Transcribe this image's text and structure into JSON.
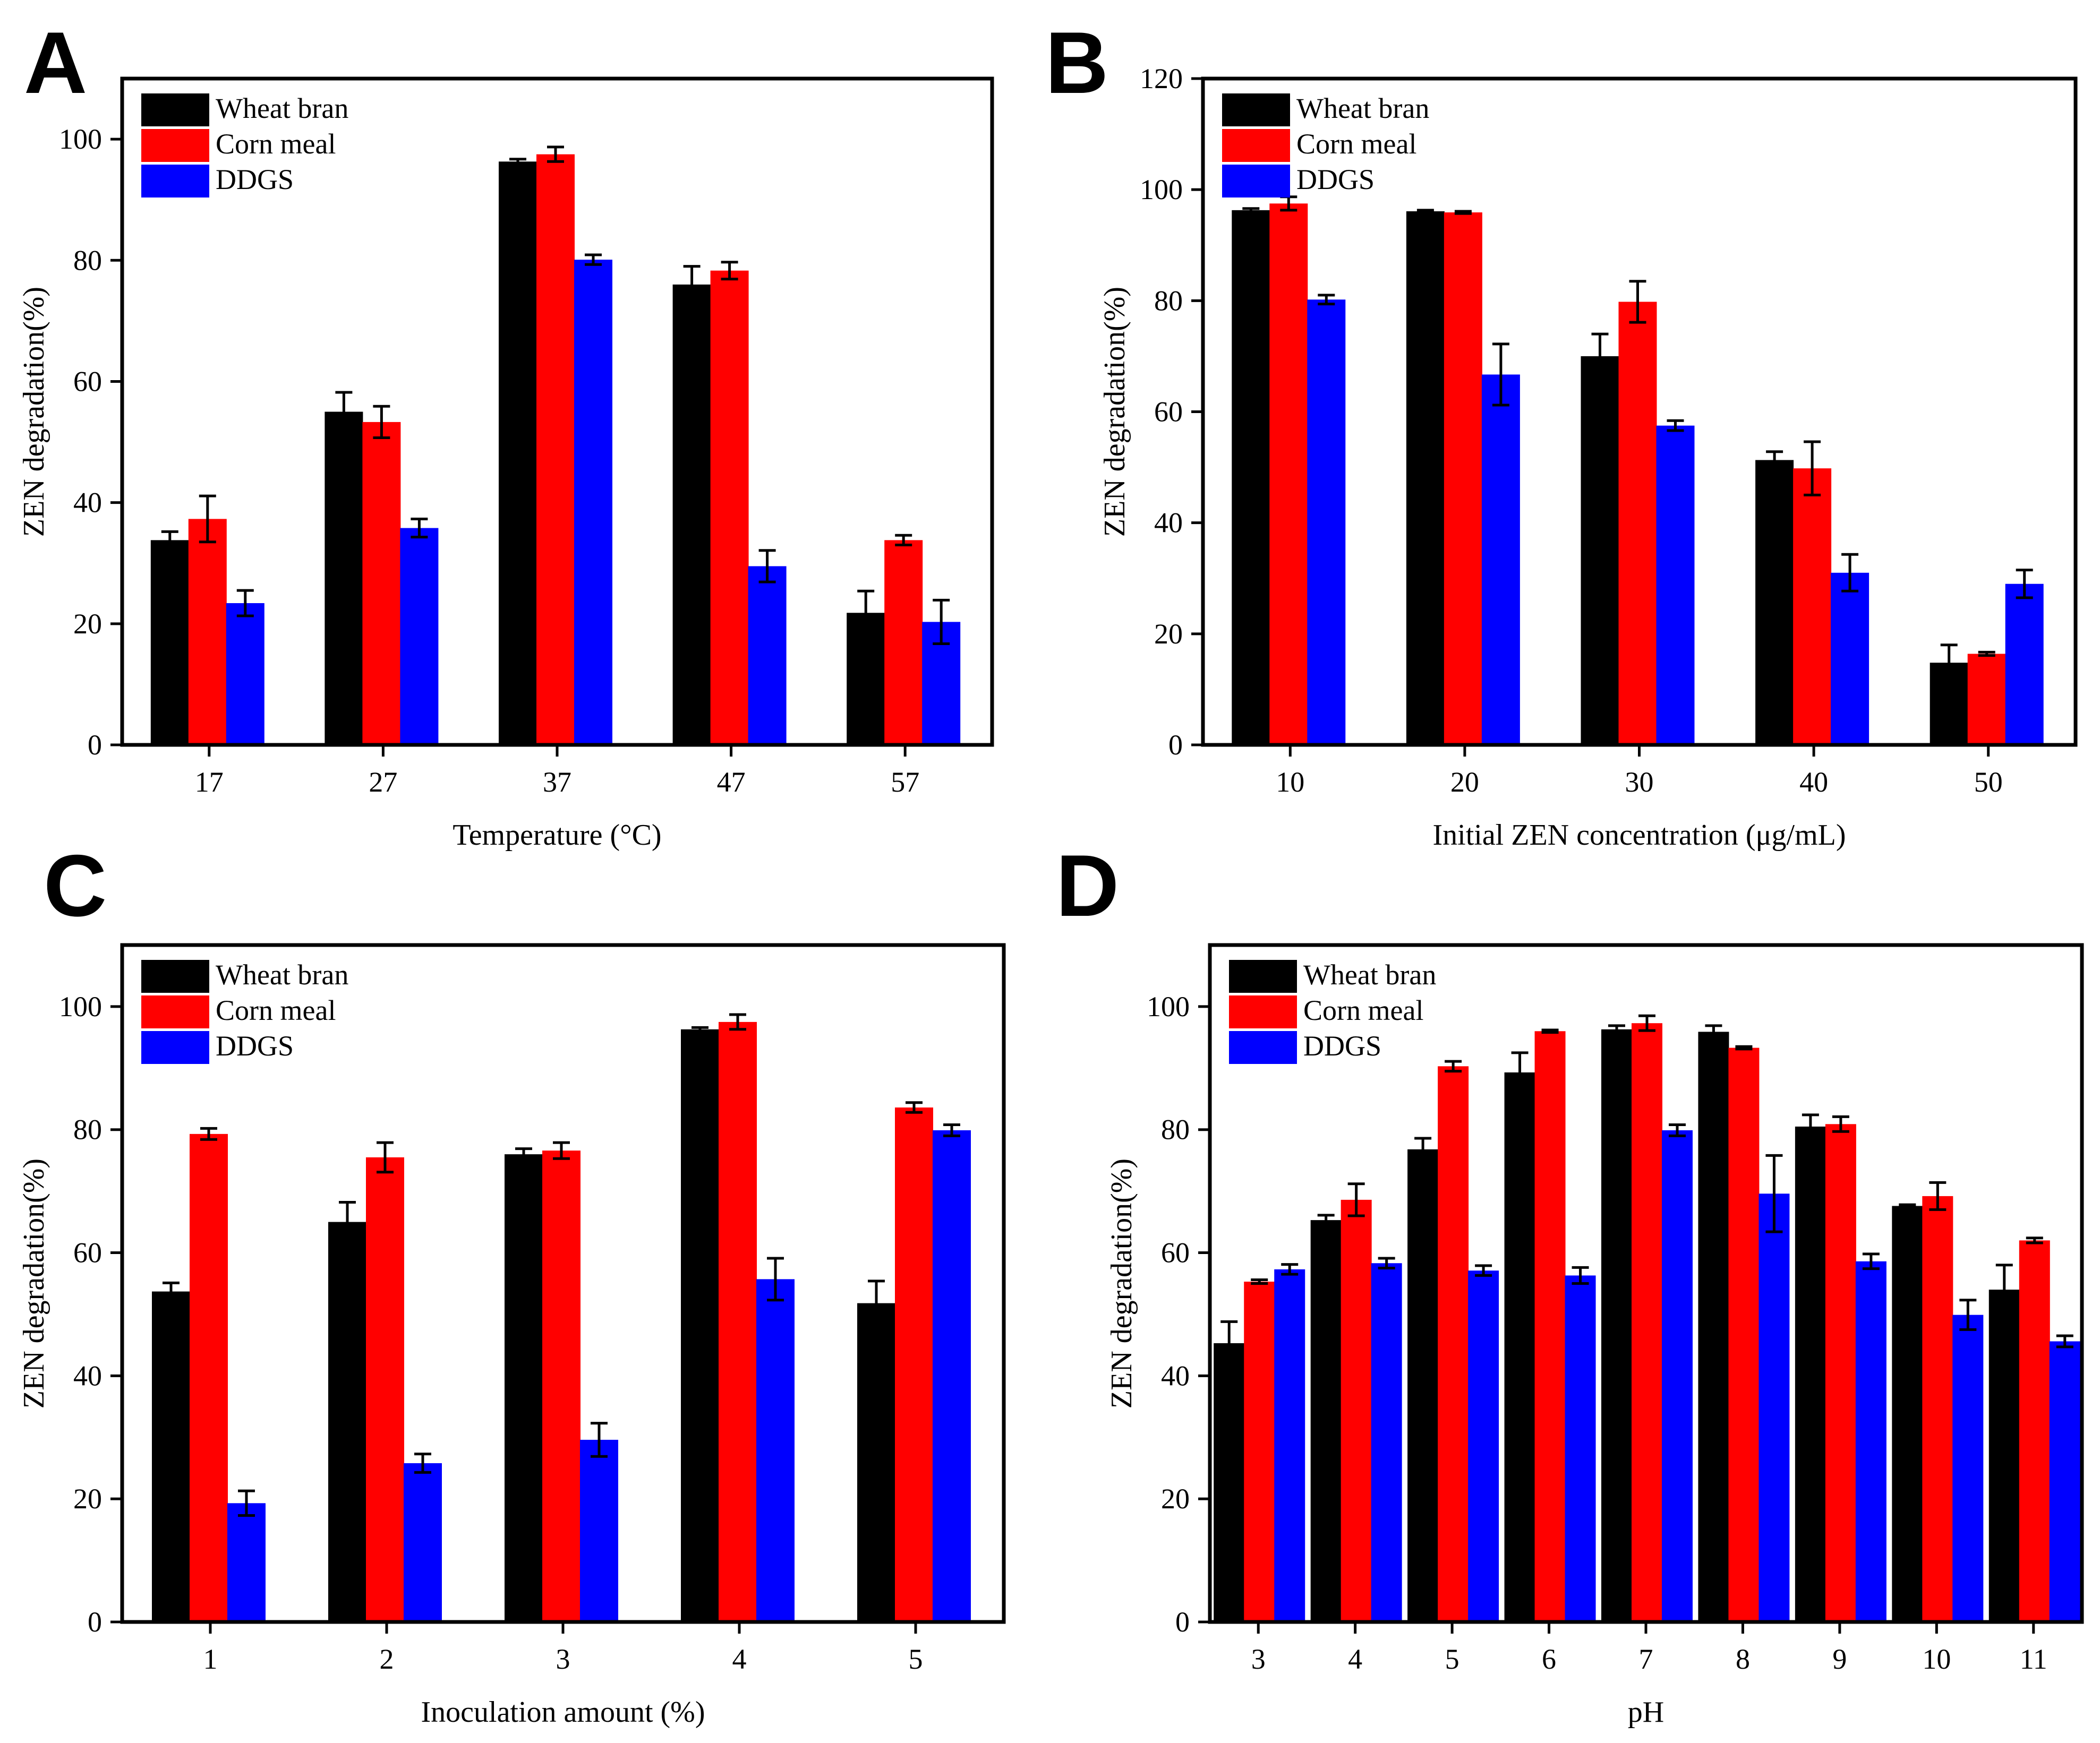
{
  "colors": {
    "wheat_bran": "#000000",
    "corn_meal": "#ff0000",
    "ddgs": "#0000ff"
  },
  "chart_data": [
    {
      "panel": "A",
      "type": "bar",
      "xlabel": "Temperature (°C)",
      "ylabel": "ZEN degradation(%)",
      "ylim": [
        0,
        110
      ],
      "yticks": [
        0,
        20,
        40,
        60,
        80,
        100
      ],
      "categories": [
        "17",
        "27",
        "37",
        "47",
        "57"
      ],
      "legend_position": "top-left",
      "series": [
        {
          "name": "Wheat bran",
          "color": "#000000",
          "values": [
            33.8,
            55.0,
            96.3,
            76.0,
            21.8
          ],
          "errors": [
            1.4,
            3.2,
            0.4,
            3.0,
            3.6
          ]
        },
        {
          "name": "Corn meal",
          "color": "#ff0000",
          "values": [
            37.3,
            53.3,
            97.5,
            78.3,
            33.8
          ],
          "errors": [
            3.8,
            2.6,
            1.2,
            1.4,
            0.8
          ]
        },
        {
          "name": "DDGS",
          "color": "#0000ff",
          "values": [
            23.4,
            35.8,
            80.1,
            29.5,
            20.3
          ],
          "errors": [
            2.1,
            1.5,
            0.8,
            2.6,
            3.6
          ]
        }
      ]
    },
    {
      "panel": "B",
      "type": "bar",
      "xlabel": "Initial ZEN concentration (μg/mL)",
      "ylabel": "ZEN degradation(%)",
      "ylim": [
        0,
        120
      ],
      "yticks": [
        0,
        20,
        40,
        60,
        80,
        100,
        120
      ],
      "categories": [
        "10",
        "20",
        "30",
        "40",
        "50"
      ],
      "legend_position": "top-left",
      "series": [
        {
          "name": "Wheat bran",
          "color": "#000000",
          "values": [
            96.3,
            96.1,
            70.0,
            51.3,
            14.8
          ],
          "errors": [
            0.3,
            0.2,
            4.0,
            1.5,
            3.2
          ]
        },
        {
          "name": "Corn meal",
          "color": "#ff0000",
          "values": [
            97.5,
            95.9,
            79.8,
            49.8,
            16.4
          ],
          "errors": [
            1.2,
            0.2,
            3.7,
            4.8,
            0.3
          ]
        },
        {
          "name": "DDGS",
          "color": "#0000ff",
          "values": [
            80.2,
            66.7,
            57.5,
            31.0,
            29.0
          ],
          "errors": [
            0.8,
            5.5,
            0.9,
            3.3,
            2.5
          ]
        }
      ]
    },
    {
      "panel": "C",
      "type": "bar",
      "xlabel": "Inoculation amount (%)",
      "ylabel": "ZEN degradation(%)",
      "ylim": [
        0,
        110
      ],
      "yticks": [
        0,
        20,
        40,
        60,
        80,
        100
      ],
      "categories": [
        "1",
        "2",
        "3",
        "4",
        "5"
      ],
      "legend_position": "top-left",
      "series": [
        {
          "name": "Wheat bran",
          "color": "#000000",
          "values": [
            53.7,
            65.0,
            76.0,
            96.3,
            51.8
          ],
          "errors": [
            1.4,
            3.2,
            0.9,
            0.3,
            3.6
          ]
        },
        {
          "name": "Corn meal",
          "color": "#ff0000",
          "values": [
            79.3,
            75.5,
            76.6,
            97.5,
            83.6
          ],
          "errors": [
            0.9,
            2.4,
            1.3,
            1.2,
            0.8
          ]
        },
        {
          "name": "DDGS",
          "color": "#0000ff",
          "values": [
            19.3,
            25.8,
            29.6,
            55.7,
            79.9
          ],
          "errors": [
            2.0,
            1.5,
            2.7,
            3.4,
            0.9
          ]
        }
      ]
    },
    {
      "panel": "D",
      "type": "bar",
      "xlabel": "pH",
      "ylabel": "ZEN degradation(%)",
      "ylim": [
        0,
        110
      ],
      "yticks": [
        0,
        20,
        40,
        60,
        80,
        100
      ],
      "categories": [
        "3",
        "4",
        "5",
        "6",
        "7",
        "8",
        "9",
        "10",
        "11"
      ],
      "legend_position": "top-left",
      "series": [
        {
          "name": "Wheat bran",
          "color": "#000000",
          "values": [
            45.3,
            65.3,
            76.8,
            89.3,
            96.3,
            95.9,
            80.5,
            67.6,
            54.0
          ],
          "errors": [
            3.5,
            0.8,
            1.8,
            3.2,
            0.6,
            1.0,
            1.9,
            0.2,
            4.0
          ]
        },
        {
          "name": "Corn meal",
          "color": "#ff0000",
          "values": [
            55.3,
            68.6,
            90.3,
            96.0,
            97.3,
            93.3,
            80.9,
            69.2,
            62.0
          ],
          "errors": [
            0.3,
            2.6,
            0.8,
            0.2,
            1.2,
            0.2,
            1.2,
            2.2,
            0.4
          ]
        },
        {
          "name": "DDGS",
          "color": "#0000ff",
          "values": [
            57.3,
            58.3,
            57.1,
            56.3,
            79.9,
            69.6,
            58.6,
            49.9,
            45.6
          ],
          "errors": [
            0.8,
            0.8,
            0.8,
            1.3,
            0.9,
            6.2,
            1.2,
            2.4,
            0.9
          ]
        }
      ]
    }
  ]
}
